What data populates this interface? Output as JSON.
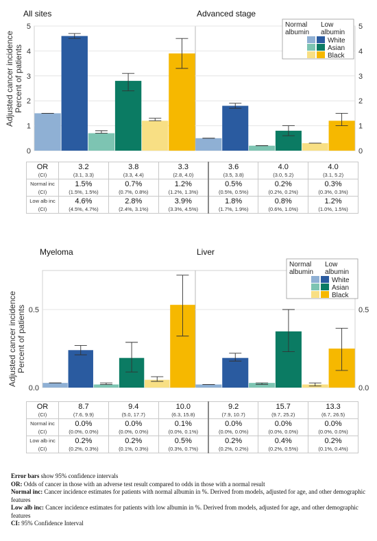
{
  "legend": {
    "col_headers": [
      "Normal albumin",
      "Low albumin"
    ],
    "groups": [
      "White",
      "Asian",
      "Black"
    ]
  },
  "colors": {
    "White": {
      "normal": "#8fb0d4",
      "low": "#2a5ba0"
    },
    "Asian": {
      "normal": "#7dc4b2",
      "low": "#0b7b63"
    },
    "Black": {
      "normal": "#f8df84",
      "low": "#f6b800"
    }
  },
  "shared_ylabel": [
    "Adjusted cancer incidence",
    "Percent of patients"
  ],
  "chart_data": [
    {
      "type": "bar",
      "title": "All sites",
      "ylim": [
        0,
        5
      ],
      "yticks": [
        "0",
        "1",
        "2",
        "3",
        "4",
        "5"
      ],
      "categories": [
        "White",
        "Asian",
        "Black"
      ],
      "series": [
        {
          "name": "Normal albumin",
          "values": [
            1.5,
            0.7,
            1.2
          ],
          "ci_low": [
            1.5,
            0.7,
            1.2
          ],
          "ci_high": [
            1.5,
            0.8,
            1.3
          ]
        },
        {
          "name": "Low albumin",
          "values": [
            4.6,
            2.8,
            3.9
          ],
          "ci_low": [
            4.5,
            2.4,
            3.3
          ],
          "ci_high": [
            4.7,
            3.1,
            4.5
          ]
        }
      ]
    },
    {
      "type": "bar",
      "title": "Advanced stage",
      "ylim": [
        0,
        5
      ],
      "yticks": [
        "0",
        "1",
        "2",
        "3",
        "4",
        "5"
      ],
      "categories": [
        "White",
        "Asian",
        "Black"
      ],
      "series": [
        {
          "name": "Normal albumin",
          "values": [
            0.5,
            0.2,
            0.3
          ],
          "ci_low": [
            0.5,
            0.2,
            0.3
          ],
          "ci_high": [
            0.5,
            0.2,
            0.3
          ]
        },
        {
          "name": "Low albumin",
          "values": [
            1.8,
            0.8,
            1.2
          ],
          "ci_low": [
            1.7,
            0.6,
            1.0
          ],
          "ci_high": [
            1.9,
            1.0,
            1.5
          ]
        }
      ]
    },
    {
      "type": "bar",
      "title": "Myeloma",
      "ylim": [
        0,
        0.75
      ],
      "yticks": [
        "0.0",
        "0.5"
      ],
      "categories": [
        "White",
        "Asian",
        "Black"
      ],
      "series": [
        {
          "name": "Normal albumin",
          "values": [
            0.03,
            0.02,
            0.05
          ],
          "ci_low": [
            0.03,
            0.02,
            0.04
          ],
          "ci_high": [
            0.03,
            0.03,
            0.07
          ]
        },
        {
          "name": "Low albumin",
          "values": [
            0.24,
            0.19,
            0.53
          ],
          "ci_low": [
            0.21,
            0.1,
            0.33
          ],
          "ci_high": [
            0.27,
            0.29,
            0.72
          ]
        }
      ]
    },
    {
      "type": "bar",
      "title": "Liver",
      "ylim": [
        0,
        0.75
      ],
      "yticks": [
        "0.0",
        "0.5"
      ],
      "categories": [
        "White",
        "Asian",
        "Black"
      ],
      "series": [
        {
          "name": "Normal albumin",
          "values": [
            0.02,
            0.03,
            0.02
          ],
          "ci_low": [
            0.02,
            0.02,
            0.01
          ],
          "ci_high": [
            0.02,
            0.03,
            0.03
          ]
        },
        {
          "name": "Low albumin",
          "values": [
            0.19,
            0.36,
            0.25
          ],
          "ci_low": [
            0.17,
            0.23,
            0.11
          ],
          "ci_high": [
            0.22,
            0.5,
            0.38
          ]
        }
      ]
    }
  ],
  "table_labels": {
    "or": "OR",
    "ci": "(CI)",
    "normal": "Normal inc",
    "low": "Low alb inc"
  },
  "tables": [
    {
      "or": [
        "3.2",
        "3.8",
        "3.3",
        "3.6",
        "4.0",
        "4.0"
      ],
      "or_ci": [
        "(3.1, 3.3)",
        "(3.3, 4.4)",
        "(2.8, 4.0)",
        "(3.5, 3.8)",
        "(3.0, 5.2)",
        "(3.1, 5.2)"
      ],
      "normal": [
        "1.5%",
        "0.7%",
        "1.2%",
        "0.5%",
        "0.2%",
        "0.3%"
      ],
      "normal_ci": [
        "(1.5%, 1.5%)",
        "(0.7%, 0.8%)",
        "(1.2%, 1.3%)",
        "(0.5%, 0.5%)",
        "(0.2%, 0.2%)",
        "(0.3%, 0.3%)"
      ],
      "low": [
        "4.6%",
        "2.8%",
        "3.9%",
        "1.8%",
        "0.8%",
        "1.2%"
      ],
      "low_ci": [
        "(4.5%, 4.7%)",
        "(2.4%, 3.1%)",
        "(3.3%, 4.5%)",
        "(1.7%, 1.9%)",
        "(0.6%, 1.0%)",
        "(1.0%, 1.5%)"
      ]
    },
    {
      "or": [
        "8.7",
        "9.4",
        "10.0",
        "9.2",
        "15.7",
        "13.3"
      ],
      "or_ci": [
        "(7.6, 9.9)",
        "(5.0, 17.7)",
        "(6.3, 15.8)",
        "(7.9, 10.7)",
        "(9.7, 25.2)",
        "(6.7, 26.5)"
      ],
      "normal": [
        "0.0%",
        "0.0%",
        "0.1%",
        "0.0%",
        "0.0%",
        "0.0%"
      ],
      "normal_ci": [
        "(0.0%, 0.0%)",
        "(0.0%, 0.0%)",
        "(0.0%, 0.1%)",
        "(0.0%, 0.0%)",
        "(0.0%, 0.0%)",
        "(0.0%, 0.0%)"
      ],
      "low": [
        "0.2%",
        "0.2%",
        "0.5%",
        "0.2%",
        "0.4%",
        "0.2%"
      ],
      "low_ci": [
        "(0.2%, 0.3%)",
        "(0.1%, 0.3%)",
        "(0.3%, 0.7%)",
        "(0.2%, 0.2%)",
        "(0.2%, 0.5%)",
        "(0.1%, 0.4%)"
      ]
    }
  ],
  "footnotes": [
    {
      "term": "Error bars",
      "text": " show 95% confidence intervals"
    },
    {
      "term": "OR:",
      "text": " Odds of cancer in those with an adverse test result compared to odds in those with a normal result"
    },
    {
      "term": "Normal inc:",
      "text": " Cancer incidence estimates for patients with normal albumin in %. Derived from models, adjusted for age, and other demographic features"
    },
    {
      "term": "Low alb inc:",
      "text": " Cancer incidence estimates for patients with low albumin in %. Derived from models, adjusted for age, and other demographic features"
    },
    {
      "term": "CI:",
      "text": " 95% Confidence Interval"
    }
  ]
}
